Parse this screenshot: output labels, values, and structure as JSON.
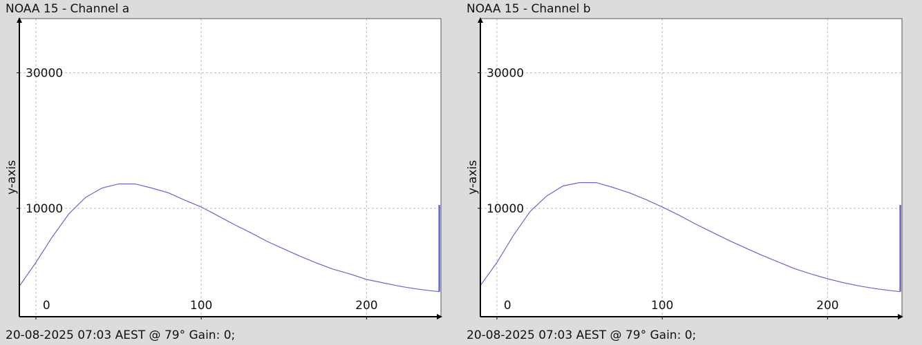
{
  "chart_data": [
    {
      "type": "line",
      "title": "NOAA 15 - Channel a",
      "ylabel": "y-axis",
      "xlabel": "",
      "footer": "20-08-2025 07:03 AEST @ 79° Gain: 0;",
      "xlim": [
        -10,
        245
      ],
      "ylim": [
        -6000,
        38000
      ],
      "x_ticks": [
        0,
        100,
        200
      ],
      "y_ticks": [
        10000,
        30000
      ],
      "grid": true,
      "line_color": "#6666cc",
      "series": [
        {
          "x": [
            -10,
            0,
            10,
            20,
            30,
            40,
            50,
            60,
            70,
            80,
            90,
            100,
            110,
            120,
            130,
            140,
            150,
            160,
            170,
            180,
            190,
            200,
            210,
            220,
            230,
            240,
            244
          ],
          "y": [
            -1500,
            2000,
            5800,
            9200,
            11600,
            13000,
            13600,
            13600,
            13000,
            12300,
            11200,
            10200,
            8900,
            7600,
            6400,
            5100,
            4000,
            2900,
            1900,
            1000,
            300,
            -500,
            -1000,
            -1500,
            -1900,
            -2200,
            -2300
          ]
        }
      ],
      "end_spike": [
        -2300,
        10500
      ]
    },
    {
      "type": "line",
      "title": "NOAA 15 - Channel b",
      "ylabel": "y-axis",
      "xlabel": "",
      "footer": "20-08-2025 07:03 AEST @ 79° Gain: 0;",
      "xlim": [
        -10,
        245
      ],
      "ylim": [
        -6000,
        38000
      ],
      "x_ticks": [
        0,
        100,
        200
      ],
      "y_ticks": [
        10000,
        30000
      ],
      "grid": true,
      "line_color": "#6666cc",
      "series": [
        {
          "x": [
            -10,
            0,
            10,
            20,
            30,
            40,
            50,
            60,
            70,
            80,
            90,
            100,
            110,
            120,
            130,
            140,
            150,
            160,
            170,
            180,
            190,
            200,
            210,
            220,
            230,
            240,
            244
          ],
          "y": [
            -1400,
            2000,
            6000,
            9500,
            11800,
            13300,
            13800,
            13800,
            13100,
            12300,
            11300,
            10200,
            9000,
            7700,
            6500,
            5300,
            4200,
            3100,
            2100,
            1100,
            300,
            -400,
            -1000,
            -1500,
            -1900,
            -2200,
            -2300
          ]
        }
      ],
      "end_spike": [
        -2300,
        10500
      ]
    }
  ]
}
